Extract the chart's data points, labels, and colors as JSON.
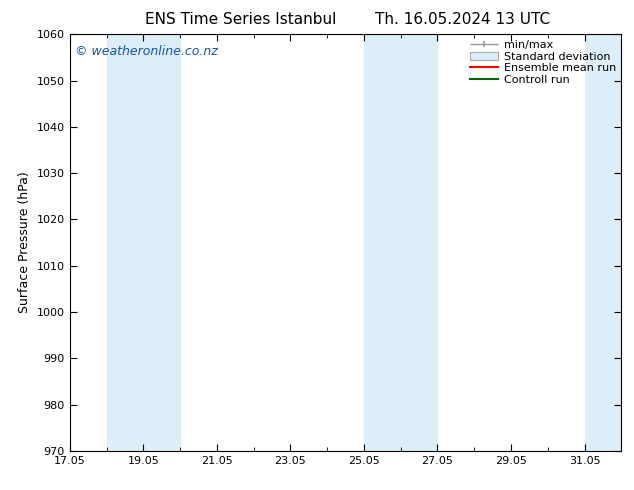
{
  "title_left": "ENS Time Series Istanbul",
  "title_right": "Th. 16.05.2024 13 UTC",
  "ylabel": "Surface Pressure (hPa)",
  "ylim": [
    970,
    1060
  ],
  "yticks": [
    970,
    980,
    990,
    1000,
    1010,
    1020,
    1030,
    1040,
    1050,
    1060
  ],
  "xlim_start": 0,
  "xlim_end": 15.0,
  "xtick_labels": [
    "17.05",
    "19.05",
    "21.05",
    "23.05",
    "25.05",
    "27.05",
    "29.05",
    "31.05"
  ],
  "xtick_positions": [
    0,
    2,
    4,
    6,
    8,
    10,
    12,
    14
  ],
  "shade_bands": [
    {
      "x_start": 1.0,
      "x_end": 3.0,
      "color": "#ddeef8"
    },
    {
      "x_start": 8.0,
      "x_end": 10.0,
      "color": "#ddeef8"
    },
    {
      "x_start": 14.0,
      "x_end": 15.0,
      "color": "#ddeef8"
    }
  ],
  "legend_labels": [
    "min/max",
    "Standard deviation",
    "Ensemble mean run",
    "Controll run"
  ],
  "watermark": "© weatheronline.co.nz",
  "bg_color": "#ffffff",
  "plot_bg_color": "#ffffff",
  "border_color": "#000000",
  "font_size_title": 11,
  "font_size_axis": 9,
  "font_size_ticks": 8,
  "font_size_legend": 8,
  "font_size_watermark": 9
}
